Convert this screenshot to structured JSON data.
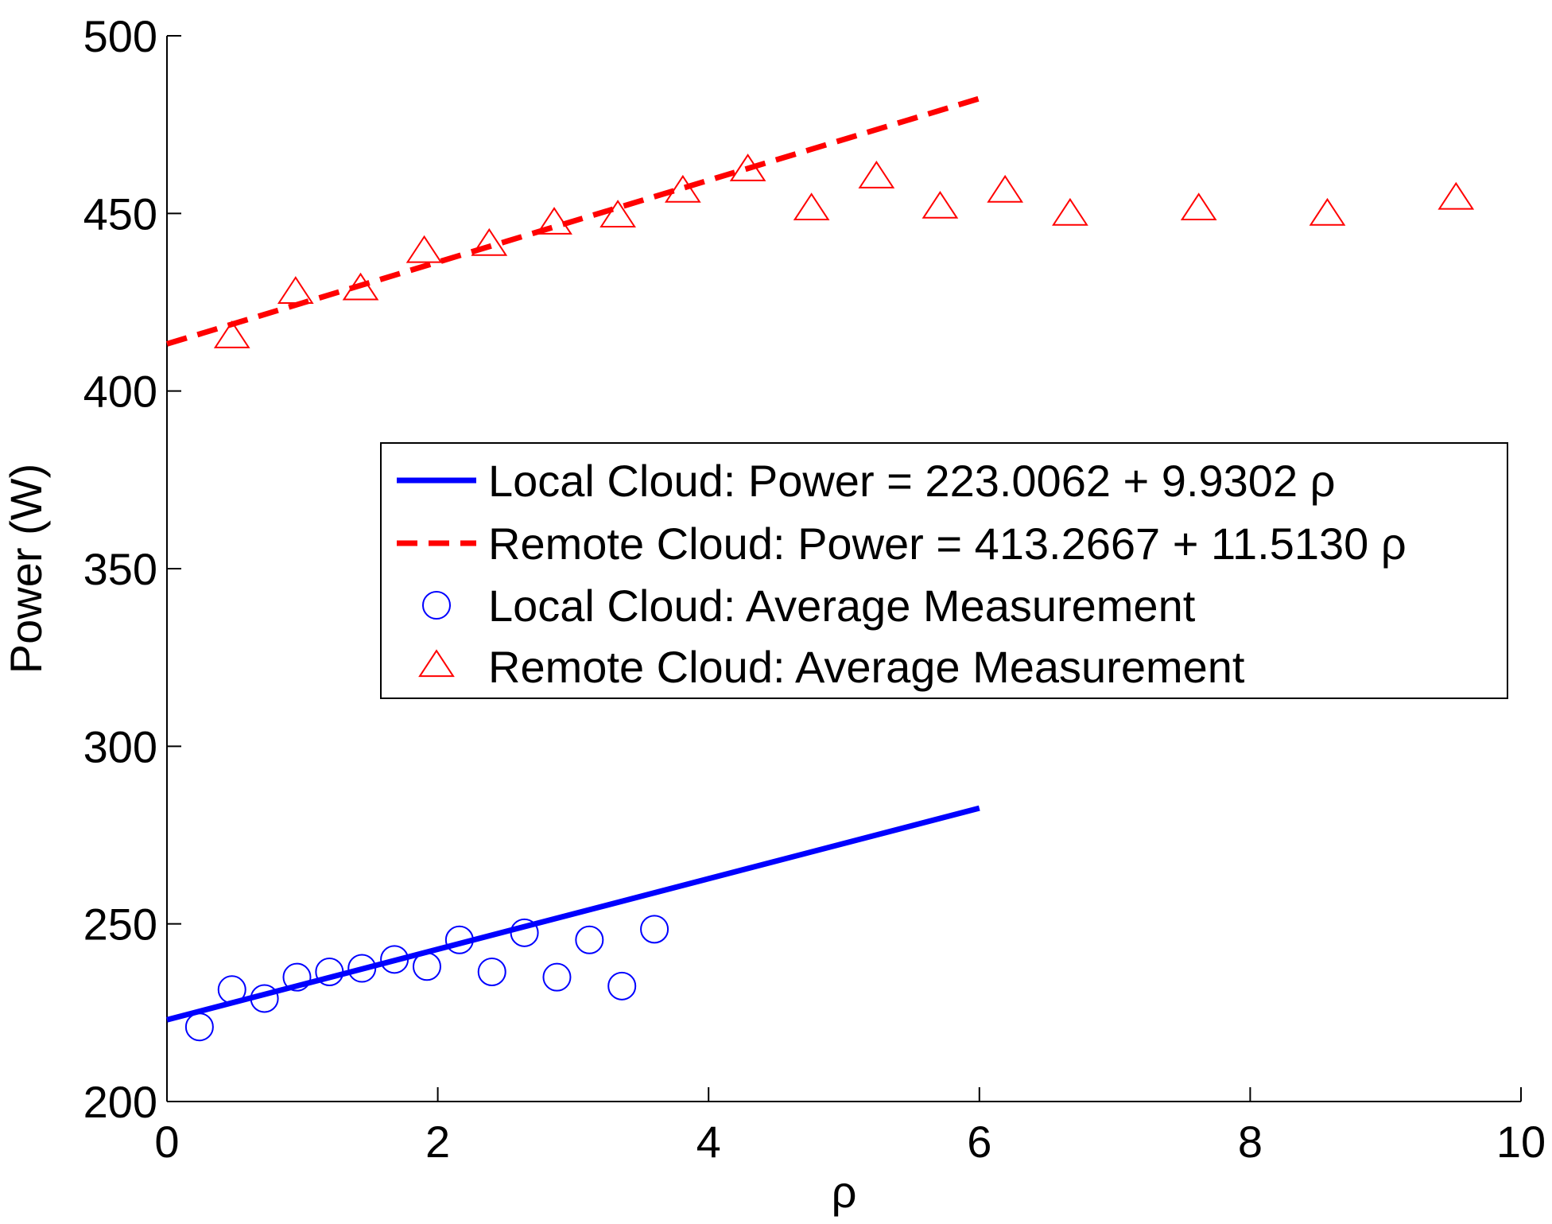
{
  "chart_data": {
    "type": "scatter",
    "xlabel": "ρ",
    "ylabel": "Power (W)",
    "xlim": [
      0,
      10
    ],
    "ylim": [
      200,
      500
    ],
    "xticks": [
      0,
      2,
      4,
      6,
      8,
      10
    ],
    "yticks": [
      200,
      250,
      300,
      350,
      400,
      450,
      500
    ],
    "grid": false,
    "legend_position": "center-right",
    "series": [
      {
        "name": "Local Cloud: Power = 223.0062 + 9.9302 ρ",
        "kind": "line",
        "style": "solid",
        "color": "#0000ff",
        "x": [
          0,
          6
        ],
        "y": [
          223.0062,
          282.5874
        ]
      },
      {
        "name": "Remote Cloud: Power = 413.2667 + 11.5130 ρ",
        "kind": "line",
        "style": "dashed",
        "color": "#ff0000",
        "x": [
          0,
          6
        ],
        "y": [
          413.2667,
          482.3447
        ]
      },
      {
        "name": "Local Cloud: Average Measurement",
        "kind": "marker",
        "marker": "circle",
        "color": "#0000ff",
        "x": [
          0.24,
          0.48,
          0.72,
          0.96,
          1.2,
          1.44,
          1.68,
          1.92,
          2.16,
          2.4,
          2.64,
          2.88,
          3.12,
          3.36,
          3.6
        ],
        "y": [
          221,
          231.5,
          229,
          235,
          236.5,
          237.5,
          240,
          238,
          245.5,
          236.5,
          247.5,
          235,
          245.5,
          232.5,
          248.5
        ]
      },
      {
        "name": "Remote Cloud: Average Measurement",
        "kind": "marker",
        "marker": "triangle",
        "color": "#ff0000",
        "x": [
          0.48,
          0.95,
          1.43,
          1.9,
          2.38,
          2.86,
          3.33,
          3.81,
          4.29,
          4.76,
          5.24,
          5.71,
          6.19,
          6.67,
          7.62,
          8.57,
          9.52
        ],
        "y": [
          415,
          427.5,
          428.5,
          439,
          441,
          447,
          449,
          456,
          462,
          451,
          460,
          451.5,
          456,
          449.5,
          451,
          449.5,
          454
        ]
      }
    ]
  }
}
